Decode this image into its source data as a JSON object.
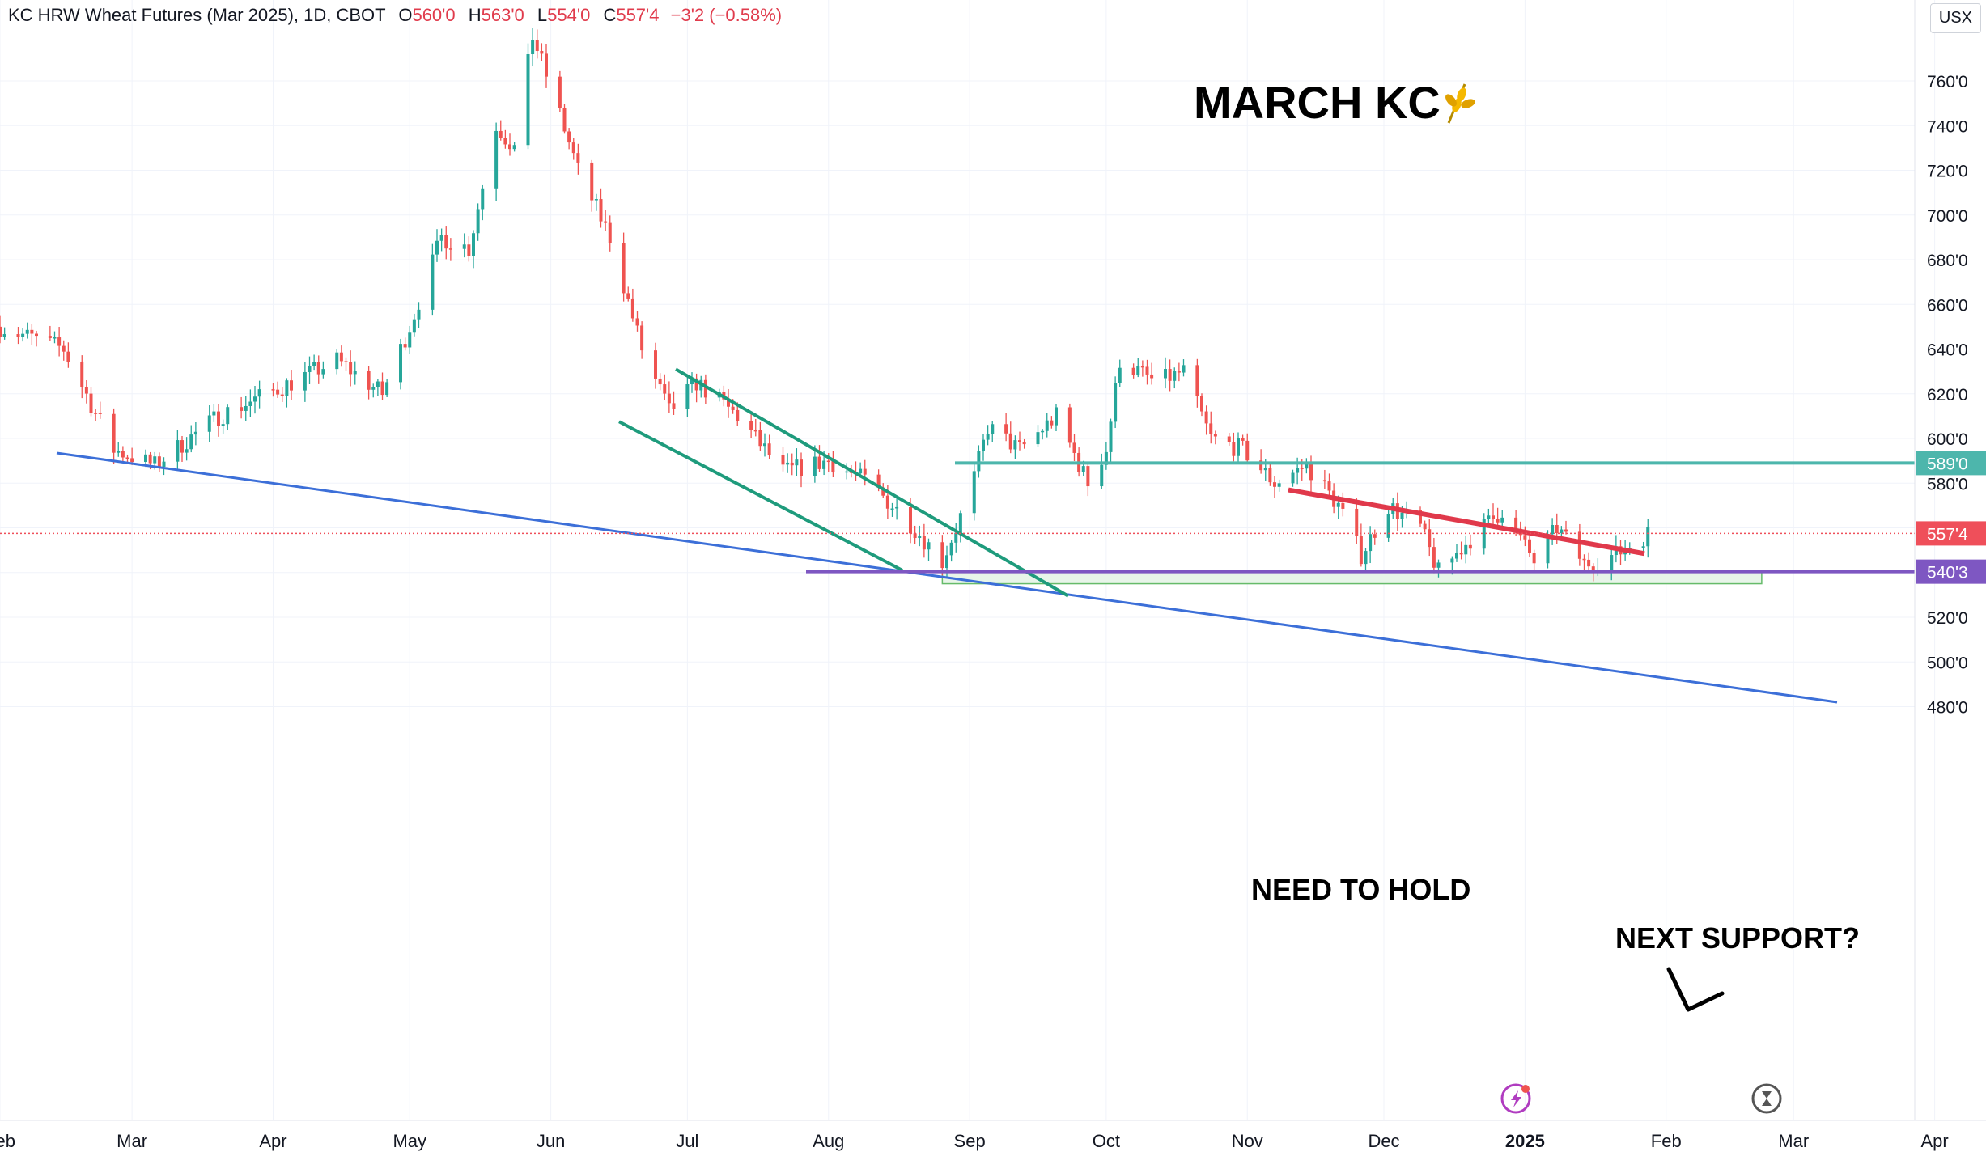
{
  "header": {
    "symbol": "KC HRW Wheat Futures (Mar 2025), 1D, CBOT",
    "o_label": "O",
    "o_value": "560'0",
    "h_label": "H",
    "h_value": "563'0",
    "l_label": "L",
    "l_value": "554'0",
    "c_label": "C",
    "c_value": "557'4",
    "change": "−3'2 (−0.58%)",
    "unit_button": "USX"
  },
  "colors": {
    "up": "#26a69a",
    "down": "#ef5350",
    "teal_line": "#4db6ac",
    "red_trend": "#e0394b",
    "blue_trend": "#3c6fd8",
    "channel": "#1e9b7c",
    "purple": "#7e57c2",
    "price_marker": "#ef4f5a",
    "zone_fill": "#e8f5e9",
    "zone_border": "#66bb6a"
  },
  "annotations": {
    "title": "MARCH KC",
    "title_icon": "wheat-icon",
    "need_to_hold": "NEED TO HOLD",
    "next_support": "NEXT SUPPORT?"
  },
  "chart_data": {
    "type": "candlestick",
    "y_axis": {
      "min": 465,
      "max": 785,
      "ticks": [
        "480'0",
        "500'0",
        "520'0",
        "540'0",
        "560'0",
        "580'0",
        "600'0",
        "620'0",
        "640'0",
        "660'0",
        "680'0",
        "700'0",
        "720'0",
        "740'0",
        "760'0"
      ]
    },
    "x_axis": {
      "labels": [
        "Feb",
        "Mar",
        "Apr",
        "May",
        "Jun",
        "Jul",
        "Aug",
        "Sep",
        "Oct",
        "Nov",
        "Dec",
        "2025",
        "Feb",
        "Mar",
        "Apr"
      ]
    },
    "price_labels": [
      {
        "text": "589'0",
        "value": 589,
        "color": "#4db6ac"
      },
      {
        "text": "557'4",
        "value": 557.5,
        "color": "#ef4f5a"
      },
      {
        "text": "540'3",
        "value": 540.4,
        "color": "#7e57c2"
      }
    ],
    "key_points": [
      {
        "date": "2024-02-01",
        "close": 650
      },
      {
        "date": "2024-02-15",
        "close": 640
      },
      {
        "date": "2024-02-26",
        "close": 595
      },
      {
        "date": "2024-03-06",
        "close": 588
      },
      {
        "date": "2024-03-20",
        "close": 610
      },
      {
        "date": "2024-04-05",
        "close": 625
      },
      {
        "date": "2024-04-15",
        "close": 635
      },
      {
        "date": "2024-04-25",
        "close": 620
      },
      {
        "date": "2024-05-01",
        "close": 650
      },
      {
        "date": "2024-05-08",
        "close": 690
      },
      {
        "date": "2024-05-14",
        "close": 685
      },
      {
        "date": "2024-05-20",
        "close": 740
      },
      {
        "date": "2024-05-24",
        "close": 730
      },
      {
        "date": "2024-05-28",
        "close": 780
      },
      {
        "date": "2024-06-03",
        "close": 745
      },
      {
        "date": "2024-06-07",
        "close": 720
      },
      {
        "date": "2024-06-14",
        "close": 690
      },
      {
        "date": "2024-06-21",
        "close": 640
      },
      {
        "date": "2024-06-27",
        "close": 612
      },
      {
        "date": "2024-07-03",
        "close": 625
      },
      {
        "date": "2024-07-12",
        "close": 610
      },
      {
        "date": "2024-07-22",
        "close": 585
      },
      {
        "date": "2024-08-01",
        "close": 590
      },
      {
        "date": "2024-08-10",
        "close": 580
      },
      {
        "date": "2024-08-19",
        "close": 562
      },
      {
        "date": "2024-08-26",
        "close": 545
      },
      {
        "date": "2024-09-01",
        "close": 575
      },
      {
        "date": "2024-09-05",
        "close": 605
      },
      {
        "date": "2024-09-12",
        "close": 595
      },
      {
        "date": "2024-09-20",
        "close": 610
      },
      {
        "date": "2024-09-27",
        "close": 580
      },
      {
        "date": "2024-10-01",
        "close": 595
      },
      {
        "date": "2024-10-04",
        "close": 635
      },
      {
        "date": "2024-10-12",
        "close": 625
      },
      {
        "date": "2024-10-18",
        "close": 630
      },
      {
        "date": "2024-10-24",
        "close": 600
      },
      {
        "date": "2024-10-31",
        "close": 595
      },
      {
        "date": "2024-11-07",
        "close": 580
      },
      {
        "date": "2024-11-14",
        "close": 588
      },
      {
        "date": "2024-11-21",
        "close": 570
      },
      {
        "date": "2024-11-26",
        "close": 548
      },
      {
        "date": "2024-12-02",
        "close": 570
      },
      {
        "date": "2024-12-09",
        "close": 560
      },
      {
        "date": "2024-12-13",
        "close": 540
      },
      {
        "date": "2024-12-20",
        "close": 555
      },
      {
        "date": "2024-12-27",
        "close": 568
      },
      {
        "date": "2025-01-03",
        "close": 545
      },
      {
        "date": "2025-01-08",
        "close": 560
      },
      {
        "date": "2025-01-14",
        "close": 544
      },
      {
        "date": "2025-01-21",
        "close": 548
      },
      {
        "date": "2025-01-28",
        "close": 557.5
      }
    ]
  }
}
